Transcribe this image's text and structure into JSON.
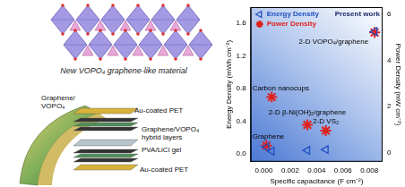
{
  "chart_data": {
    "type": "scatter",
    "x_label": "Specific capacitance (F cm⁻²)",
    "y_label": "Energy Density (mWh cm⁻²)",
    "y2_label": "Power Density (mW cm⁻²)",
    "x": [
      0.0002,
      0.0006,
      0.0033,
      0.0047,
      0.0084
    ],
    "point_labels": [
      "Graphene",
      "Carbon nanocups",
      "2-D β-Ni(OH)₂/graphene",
      "2-D VS₂",
      "2-D VOPO₄/graphene"
    ],
    "series": [
      {
        "name": "Energy Density",
        "color": "#1f4fc0",
        "marker": "triangle",
        "values": [
          0.08,
          0.03,
          0.04,
          0.05,
          1.5
        ]
      },
      {
        "name": "Power Density",
        "color": "#e0201b",
        "marker": "star",
        "axis": "y2",
        "values": [
          0.3,
          2.4,
          1.2,
          0.95,
          5.2
        ]
      }
    ],
    "annotations": [
      "Present work"
    ],
    "xlim": [
      -0.001,
      0.009
    ],
    "xticks": [
      {
        "value": 0,
        "label": "0.000"
      },
      {
        "value": 0.002,
        "label": "0.002"
      },
      {
        "value": 0.004,
        "label": "0.004"
      },
      {
        "value": 0.006,
        "label": "0.006"
      },
      {
        "value": 0.008,
        "label": "0.008"
      }
    ],
    "ylim": [
      -0.1,
      1.8
    ],
    "yticks": [
      {
        "value": 0,
        "label": "0.0"
      },
      0.4,
      0.8,
      1.2,
      1.6
    ],
    "y2lim": [
      -0.4,
      6.3
    ],
    "y2ticks": [
      0,
      2,
      4,
      6
    ],
    "legend": "upper left",
    "grid": false
  },
  "illustration": {
    "title": "New VOPO₄ graphene-like material",
    "device_labels": [
      {
        "lines": [
          "Au-coated PET"
        ]
      },
      {
        "lines": [
          "Graphene/VOPO₄",
          "hybrid layers"
        ]
      },
      {
        "lines": [
          "PVA/LiCl gel"
        ]
      },
      {
        "lines": [
          "Au-coated PET"
        ]
      },
      {
        "lines": [
          "Graphene/",
          "VOPO₄"
        ]
      }
    ]
  }
}
